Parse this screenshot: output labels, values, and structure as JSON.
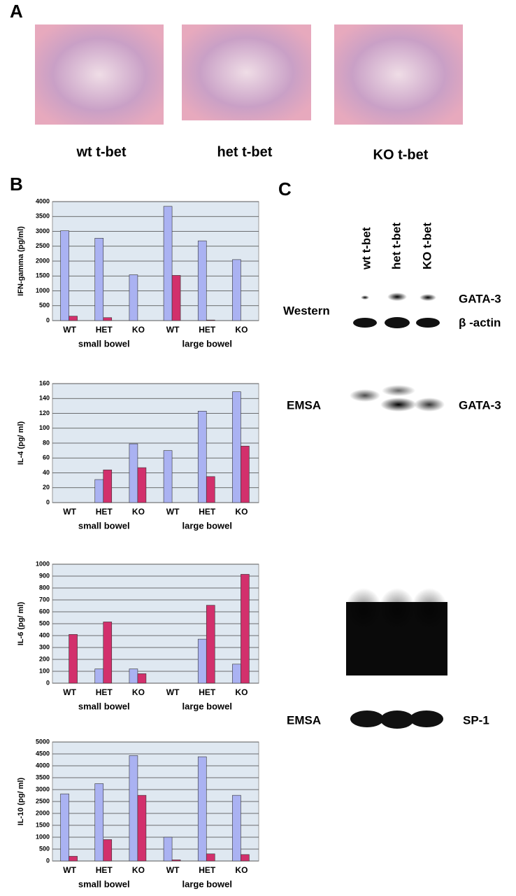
{
  "panels": {
    "A": {
      "label": "A",
      "captions": [
        "wt t-bet",
        "het t-bet",
        "KO t-bet"
      ]
    },
    "B": {
      "label": "B"
    },
    "C": {
      "label": "C",
      "lanes": [
        "wt t-bet",
        "het t-bet",
        "KO t-bet"
      ],
      "western": "Western",
      "western_bands": [
        "GATA-3",
        "β -actin"
      ],
      "emsa1": "EMSA",
      "emsa1_band": "GATA-3",
      "emsa2": "EMSA",
      "emsa2_band": "SP-1"
    }
  },
  "chart_data": [
    {
      "type": "bar",
      "y_label": "IFN-gamma (pg/ml)",
      "categories": [
        "WT",
        "HET",
        "KO",
        "WT",
        "HET",
        "KO"
      ],
      "groups": [
        "small bowel",
        "large bowel"
      ],
      "series": [
        {
          "color": "#aab2f2",
          "values": [
            3020,
            2770,
            1540,
            3840,
            2680,
            2050
          ]
        },
        {
          "color": "#d2306c",
          "values": [
            150,
            100,
            0,
            1520,
            20,
            0
          ]
        }
      ],
      "ylim": [
        0,
        4000
      ],
      "yticks": [
        0,
        500,
        1000,
        1500,
        2000,
        2500,
        3000,
        3500,
        4000
      ],
      "grid": true
    },
    {
      "type": "bar",
      "y_label": "IL-4 (pg/ ml)",
      "categories": [
        "WT",
        "HET",
        "KO",
        "WT",
        "HET",
        "KO"
      ],
      "groups": [
        "small bowel",
        "large bowel"
      ],
      "series": [
        {
          "color": "#aab2f2",
          "values": [
            0,
            31,
            79,
            70,
            123,
            149
          ]
        },
        {
          "color": "#d2306c",
          "values": [
            0,
            44,
            47,
            0,
            35,
            76
          ]
        }
      ],
      "ylim": [
        0,
        160
      ],
      "yticks": [
        0,
        20,
        40,
        60,
        80,
        100,
        120,
        140,
        160
      ],
      "grid": true
    },
    {
      "type": "bar",
      "y_label": "IL-6 (pg/ ml)",
      "categories": [
        "WT",
        "HET",
        "KO",
        "WT",
        "HET",
        "KO"
      ],
      "groups": [
        "small bowel",
        "large bowel"
      ],
      "series": [
        {
          "color": "#aab2f2",
          "values": [
            0,
            120,
            120,
            0,
            370,
            160
          ]
        },
        {
          "color": "#d2306c",
          "values": [
            410,
            515,
            80,
            0,
            655,
            915
          ]
        }
      ],
      "ylim": [
        0,
        1000
      ],
      "yticks": [
        0,
        100,
        200,
        300,
        400,
        500,
        600,
        700,
        800,
        900,
        1000
      ],
      "grid": true
    },
    {
      "type": "bar",
      "y_label": "IL-10 (pg/ ml)",
      "categories": [
        "WT",
        "HET",
        "KO",
        "WT",
        "HET",
        "KO"
      ],
      "groups": [
        "small bowel",
        "large bowel"
      ],
      "series": [
        {
          "color": "#aab2f2",
          "values": [
            2820,
            3250,
            4430,
            1000,
            4380,
            2760
          ]
        },
        {
          "color": "#d2306c",
          "values": [
            200,
            900,
            2760,
            50,
            300,
            270
          ]
        }
      ],
      "ylim": [
        0,
        5000
      ],
      "yticks": [
        0,
        500,
        1000,
        1500,
        2000,
        2500,
        3000,
        3500,
        4000,
        4500,
        5000
      ],
      "grid": true
    }
  ]
}
